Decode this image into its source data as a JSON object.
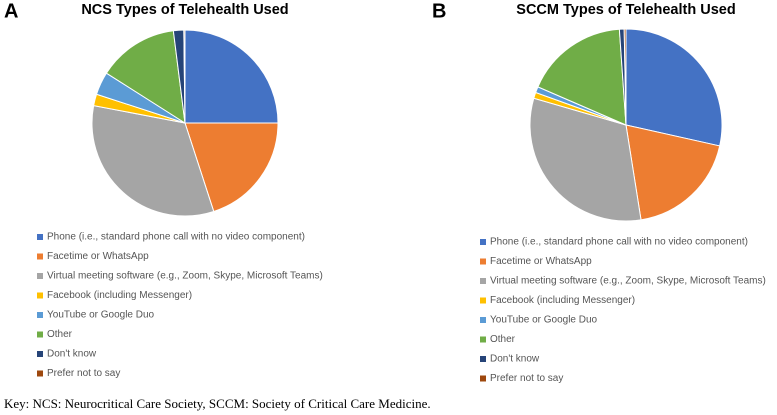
{
  "chart_data": [
    {
      "type": "pie",
      "panel": "A",
      "title": "NCS Types of Telehealth Used",
      "categories": [
        "Phone (i.e., standard phone call with no video component)",
        "Facetime or WhatsApp",
        "Virtual meeting software (e.g., Zoom, Skype, Microsoft Teams)",
        "Facebook (including Messenger)",
        "YouTube or Google Duo",
        "Other",
        "Don't know",
        "Prefer not to say"
      ],
      "values": [
        25,
        20,
        33,
        2,
        4,
        14,
        1.8,
        0.2
      ],
      "colors": [
        "#4472c4",
        "#ed7d31",
        "#a5a5a5",
        "#ffc000",
        "#5b9bd5",
        "#70ad47",
        "#264478",
        "#9e480e"
      ]
    },
    {
      "type": "pie",
      "panel": "B",
      "title": "SCCM Types of Telehealth Used",
      "categories": [
        "Phone (i.e., standard phone call with no video component)",
        "Facetime or WhatsApp",
        "Virtual meeting software (e.g., Zoom, Skype, Microsoft Teams)",
        "Facebook (including Messenger)",
        "YouTube or Google Duo",
        "Other",
        "Don't know",
        "Prefer not to say"
      ],
      "values": [
        28.5,
        19,
        32,
        1,
        1,
        17.4,
        0.8,
        0.3
      ],
      "colors": [
        "#4472c4",
        "#ed7d31",
        "#a5a5a5",
        "#ffc000",
        "#5b9bd5",
        "#70ad47",
        "#264478",
        "#9e480e"
      ]
    }
  ],
  "caption": "Key: NCS: Neurocritical Care Society, SCCM: Society of Critical Care Medicine."
}
